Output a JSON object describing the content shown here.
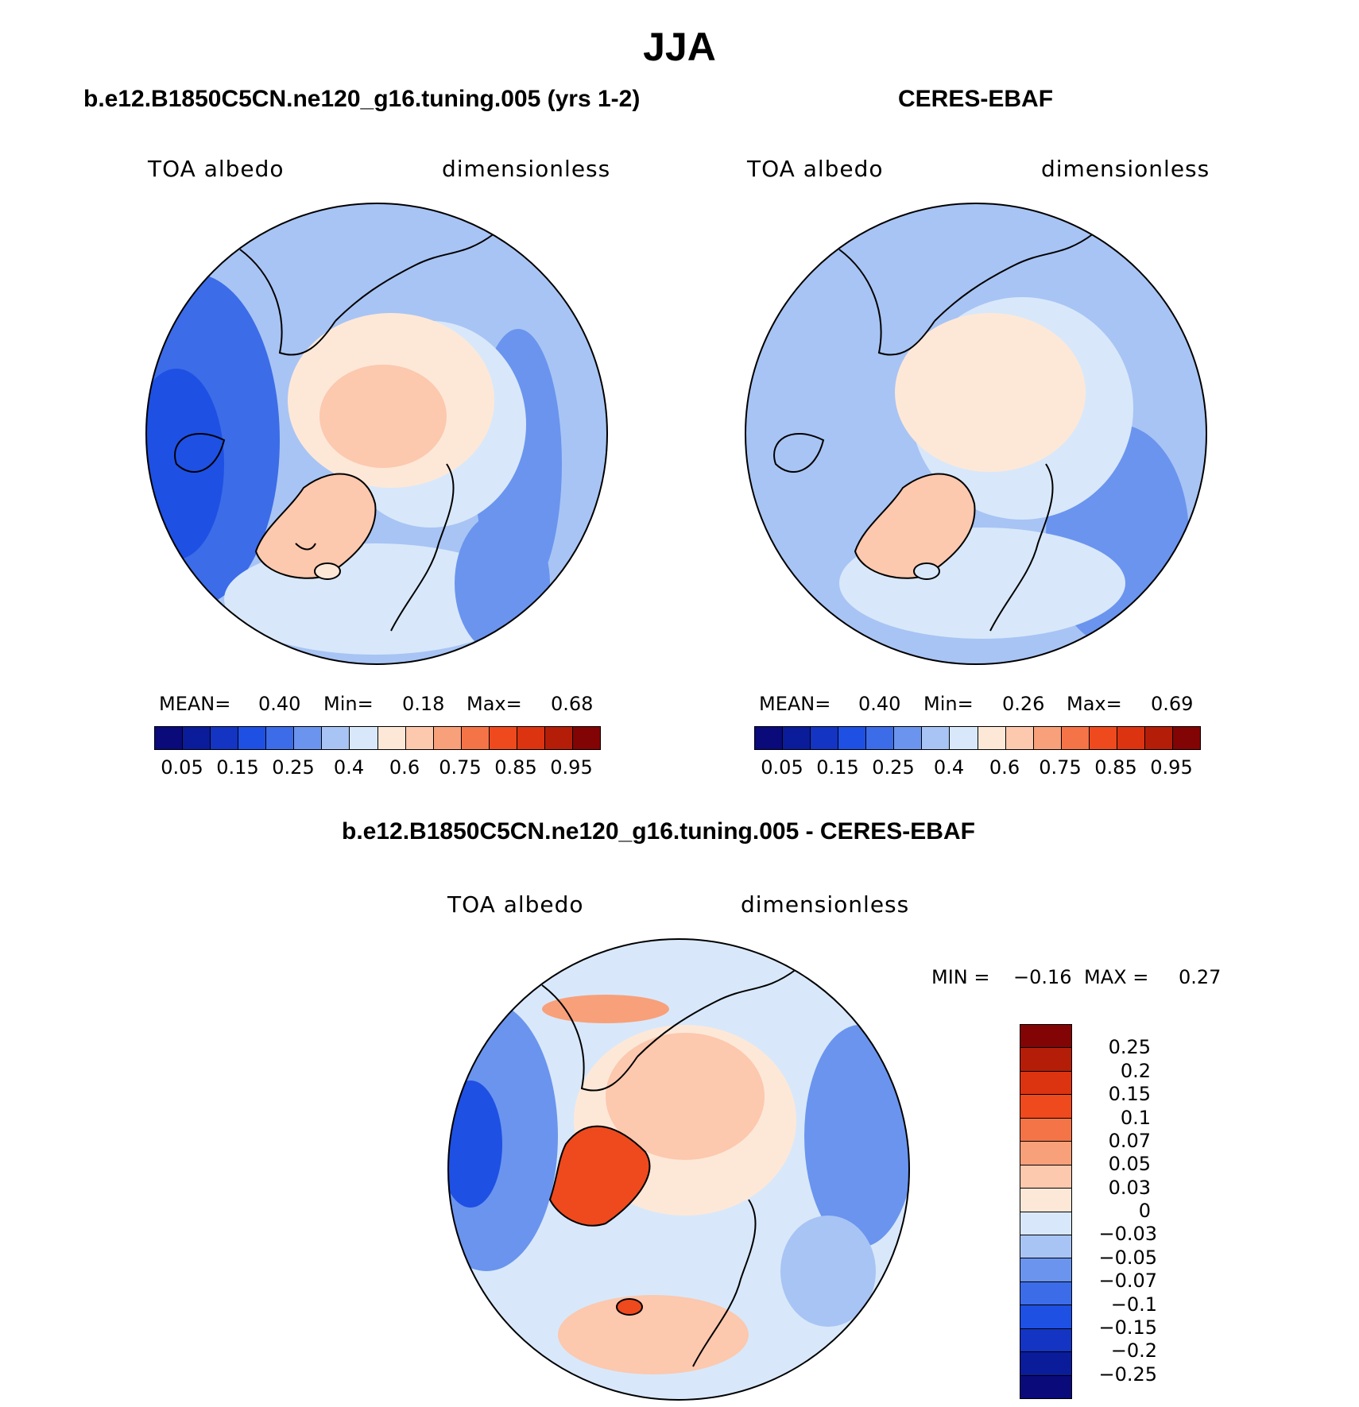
{
  "title": "JJA",
  "panels": [
    {
      "title": "b.e12.B1850C5CN.ne120_g16.tuning.005 (yrs 1-2)",
      "variable": "TOA albedo",
      "units": "dimensionless",
      "stats": {
        "mean_label": "MEAN=",
        "mean": "0.40",
        "min_label": "Min=",
        "min": "0.18",
        "max_label": "Max=",
        "max": "0.68"
      }
    },
    {
      "title": "CERES-EBAF",
      "variable": "TOA albedo",
      "units": "dimensionless",
      "stats": {
        "mean_label": "MEAN=",
        "mean": "0.40",
        "min_label": "Min=",
        "min": "0.26",
        "max_label": "Max=",
        "max": "0.69"
      }
    },
    {
      "title": "b.e12.B1850C5CN.ne120_g16.tuning.005 - CERES-EBAF",
      "variable": "TOA albedo",
      "units": "dimensionless",
      "stats": {
        "min_label": "MIN =",
        "min": "−0.16",
        "max_label": "MAX =",
        "max": "0.27"
      }
    }
  ],
  "colorbar_abs": {
    "colors": [
      "#0a0a7a",
      "#0a1c9a",
      "#1434c4",
      "#1e50e4",
      "#3c6ce8",
      "#6a94ee",
      "#a8c4f4",
      "#d8e8fa",
      "#fde8d8",
      "#fcc8ae",
      "#f8a07a",
      "#f47448",
      "#ee4a1e",
      "#dc3410",
      "#b41e08",
      "#820404"
    ],
    "tick_labels": [
      "0.05",
      "0.15",
      "0.25",
      "0.4",
      "0.6",
      "0.75",
      "0.85",
      "0.95"
    ]
  },
  "colorbar_diff": {
    "colors": [
      "#820404",
      "#b41e08",
      "#dc3410",
      "#ee4a1e",
      "#f47448",
      "#f8a07a",
      "#fcc8ae",
      "#fde8d8",
      "#d8e8fa",
      "#a8c4f4",
      "#6a94ee",
      "#3c6ce8",
      "#1e50e4",
      "#1434c4",
      "#0a1c9a",
      "#0a0a7a"
    ],
    "tick_labels": [
      "0.25",
      "0.2",
      "0.15",
      "0.1",
      "0.07",
      "0.05",
      "0.03",
      "0",
      "−0.03",
      "−0.05",
      "−0.07",
      "−0.1",
      "−0.15",
      "−0.2",
      "−0.25"
    ]
  }
}
